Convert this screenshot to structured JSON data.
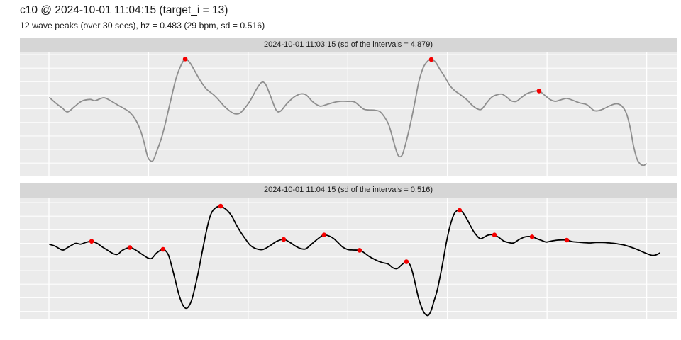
{
  "page": {
    "title": "c10 @ 2024-10-01 11:04:15 (target_i = 13)",
    "subtitle": "12 wave peaks (over 30 secs), hz = 0.483 (29 bpm, sd = 0.516)"
  },
  "colors": {
    "background": "#ffffff",
    "panel_background": "#ebebeb",
    "strip_background": "#d6d6d6",
    "gridline": "#ffffff",
    "peak_marker": "#f40000",
    "text": "#1a1a1a"
  },
  "chart_data": {
    "type": "line",
    "x_unit": "seconds",
    "x_range": [
      0,
      30.7
    ],
    "x_ticks": [
      0,
      5,
      10,
      15,
      20,
      25,
      30
    ],
    "y_axis": "normalized amplitude (no tick labels shown)",
    "grid": true,
    "legend": "none",
    "panels": [
      {
        "strip_label": "2024-10-01 11:03:15 (sd of the intervals = 4.879)",
        "sd_of_intervals": 4.879,
        "peak_count": 3,
        "line_color": "#8e8e8e",
        "points": [
          [
            0.04,
            0.634
          ],
          [
            0.39,
            0.585
          ],
          [
            0.68,
            0.55
          ],
          [
            0.93,
            0.52
          ],
          [
            1.28,
            0.562
          ],
          [
            1.64,
            0.607
          ],
          [
            2.07,
            0.621
          ],
          [
            2.31,
            0.611
          ],
          [
            2.74,
            0.634
          ],
          [
            3.06,
            0.613
          ],
          [
            3.42,
            0.579
          ],
          [
            3.74,
            0.55
          ],
          [
            4.06,
            0.516
          ],
          [
            4.34,
            0.459
          ],
          [
            4.59,
            0.373
          ],
          [
            4.77,
            0.276
          ],
          [
            4.95,
            0.162
          ],
          [
            5.09,
            0.127
          ],
          [
            5.23,
            0.13
          ],
          [
            5.41,
            0.202
          ],
          [
            5.66,
            0.316
          ],
          [
            5.87,
            0.447
          ],
          [
            6.12,
            0.619
          ],
          [
            6.37,
            0.785
          ],
          [
            6.62,
            0.893
          ],
          [
            6.84,
            0.947
          ],
          [
            7.08,
            0.916
          ],
          [
            7.33,
            0.847
          ],
          [
            7.62,
            0.767
          ],
          [
            7.9,
            0.705
          ],
          [
            8.26,
            0.659
          ],
          [
            8.51,
            0.619
          ],
          [
            8.79,
            0.567
          ],
          [
            9.08,
            0.527
          ],
          [
            9.33,
            0.505
          ],
          [
            9.58,
            0.51
          ],
          [
            9.86,
            0.556
          ],
          [
            10.11,
            0.613
          ],
          [
            10.4,
            0.699
          ],
          [
            10.65,
            0.756
          ],
          [
            10.86,
            0.747
          ],
          [
            11.11,
            0.653
          ],
          [
            11.39,
            0.539
          ],
          [
            11.61,
            0.525
          ],
          [
            11.96,
            0.59
          ],
          [
            12.32,
            0.642
          ],
          [
            12.64,
            0.665
          ],
          [
            12.92,
            0.656
          ],
          [
            13.24,
            0.602
          ],
          [
            13.6,
            0.567
          ],
          [
            13.92,
            0.579
          ],
          [
            14.28,
            0.596
          ],
          [
            14.63,
            0.606
          ],
          [
            14.99,
            0.605
          ],
          [
            15.35,
            0.6
          ],
          [
            15.77,
            0.545
          ],
          [
            16.06,
            0.536
          ],
          [
            16.38,
            0.533
          ],
          [
            16.66,
            0.516
          ],
          [
            17.02,
            0.43
          ],
          [
            17.23,
            0.322
          ],
          [
            17.41,
            0.219
          ],
          [
            17.55,
            0.165
          ],
          [
            17.73,
            0.173
          ],
          [
            17.94,
            0.287
          ],
          [
            18.16,
            0.436
          ],
          [
            18.37,
            0.602
          ],
          [
            18.58,
            0.773
          ],
          [
            18.8,
            0.882
          ],
          [
            19.01,
            0.93
          ],
          [
            19.19,
            0.943
          ],
          [
            19.4,
            0.922
          ],
          [
            19.62,
            0.865
          ],
          [
            19.87,
            0.802
          ],
          [
            20.12,
            0.733
          ],
          [
            20.36,
            0.693
          ],
          [
            20.65,
            0.659
          ],
          [
            20.97,
            0.619
          ],
          [
            21.25,
            0.573
          ],
          [
            21.5,
            0.545
          ],
          [
            21.72,
            0.543
          ],
          [
            22.0,
            0.6
          ],
          [
            22.25,
            0.642
          ],
          [
            22.5,
            0.659
          ],
          [
            22.75,
            0.663
          ],
          [
            23.0,
            0.636
          ],
          [
            23.21,
            0.609
          ],
          [
            23.46,
            0.606
          ],
          [
            23.71,
            0.636
          ],
          [
            23.96,
            0.665
          ],
          [
            24.25,
            0.682
          ],
          [
            24.6,
            0.689
          ],
          [
            24.89,
            0.653
          ],
          [
            25.17,
            0.619
          ],
          [
            25.42,
            0.606
          ],
          [
            25.71,
            0.619
          ],
          [
            25.99,
            0.629
          ],
          [
            26.31,
            0.613
          ],
          [
            26.63,
            0.593
          ],
          [
            26.99,
            0.579
          ],
          [
            27.34,
            0.533
          ],
          [
            27.56,
            0.53
          ],
          [
            27.81,
            0.543
          ],
          [
            28.09,
            0.565
          ],
          [
            28.34,
            0.582
          ],
          [
            28.55,
            0.585
          ],
          [
            28.77,
            0.565
          ],
          [
            28.98,
            0.51
          ],
          [
            29.16,
            0.402
          ],
          [
            29.34,
            0.247
          ],
          [
            29.52,
            0.139
          ],
          [
            29.69,
            0.099
          ],
          [
            29.84,
            0.089
          ],
          [
            29.98,
            0.101
          ]
        ],
        "peaks": [
          [
            6.84,
            0.947
          ],
          [
            19.19,
            0.943
          ],
          [
            24.6,
            0.689
          ]
        ]
      },
      {
        "strip_label": "2024-10-01 11:04:15 (sd of the intervals = 0.516)",
        "sd_of_intervals": 0.516,
        "peak_count": 12,
        "line_color": "#000000",
        "points": [
          [
            0.04,
            0.614
          ],
          [
            0.32,
            0.598
          ],
          [
            0.68,
            0.567
          ],
          [
            0.93,
            0.587
          ],
          [
            1.14,
            0.607
          ],
          [
            1.35,
            0.623
          ],
          [
            1.6,
            0.616
          ],
          [
            1.85,
            0.63
          ],
          [
            2.14,
            0.639
          ],
          [
            2.42,
            0.622
          ],
          [
            2.71,
            0.589
          ],
          [
            2.99,
            0.56
          ],
          [
            3.24,
            0.536
          ],
          [
            3.45,
            0.532
          ],
          [
            3.7,
            0.566
          ],
          [
            4.06,
            0.588
          ],
          [
            4.31,
            0.571
          ],
          [
            4.63,
            0.537
          ],
          [
            4.95,
            0.503
          ],
          [
            5.16,
            0.499
          ],
          [
            5.41,
            0.543
          ],
          [
            5.73,
            0.573
          ],
          [
            5.98,
            0.532
          ],
          [
            6.16,
            0.435
          ],
          [
            6.34,
            0.318
          ],
          [
            6.52,
            0.201
          ],
          [
            6.69,
            0.123
          ],
          [
            6.84,
            0.089
          ],
          [
            6.98,
            0.094
          ],
          [
            7.16,
            0.152
          ],
          [
            7.33,
            0.259
          ],
          [
            7.51,
            0.395
          ],
          [
            7.69,
            0.551
          ],
          [
            7.87,
            0.698
          ],
          [
            8.05,
            0.825
          ],
          [
            8.22,
            0.892
          ],
          [
            8.44,
            0.923
          ],
          [
            8.62,
            0.929
          ],
          [
            8.79,
            0.914
          ],
          [
            8.97,
            0.891
          ],
          [
            9.19,
            0.844
          ],
          [
            9.4,
            0.776
          ],
          [
            9.65,
            0.708
          ],
          [
            9.9,
            0.649
          ],
          [
            10.11,
            0.606
          ],
          [
            10.4,
            0.578
          ],
          [
            10.72,
            0.571
          ],
          [
            11.07,
            0.6
          ],
          [
            11.43,
            0.639
          ],
          [
            11.78,
            0.655
          ],
          [
            12.1,
            0.63
          ],
          [
            12.39,
            0.598
          ],
          [
            12.64,
            0.579
          ],
          [
            12.89,
            0.577
          ],
          [
            13.21,
            0.62
          ],
          [
            13.56,
            0.668
          ],
          [
            13.81,
            0.692
          ],
          [
            14.06,
            0.683
          ],
          [
            14.28,
            0.663
          ],
          [
            14.53,
            0.625
          ],
          [
            14.74,
            0.592
          ],
          [
            14.99,
            0.572
          ],
          [
            15.27,
            0.567
          ],
          [
            15.59,
            0.565
          ],
          [
            15.81,
            0.546
          ],
          [
            16.06,
            0.516
          ],
          [
            16.31,
            0.493
          ],
          [
            16.56,
            0.473
          ],
          [
            16.77,
            0.462
          ],
          [
            17.02,
            0.452
          ],
          [
            17.27,
            0.42
          ],
          [
            17.48,
            0.414
          ],
          [
            17.73,
            0.449
          ],
          [
            17.94,
            0.471
          ],
          [
            18.12,
            0.446
          ],
          [
            18.26,
            0.376
          ],
          [
            18.41,
            0.271
          ],
          [
            18.55,
            0.171
          ],
          [
            18.69,
            0.101
          ],
          [
            18.83,
            0.049
          ],
          [
            18.94,
            0.031
          ],
          [
            19.05,
            0.029
          ],
          [
            19.19,
            0.072
          ],
          [
            19.33,
            0.148
          ],
          [
            19.48,
            0.23
          ],
          [
            19.62,
            0.337
          ],
          [
            19.8,
            0.493
          ],
          [
            19.97,
            0.649
          ],
          [
            20.15,
            0.776
          ],
          [
            20.33,
            0.863
          ],
          [
            20.47,
            0.891
          ],
          [
            20.61,
            0.895
          ],
          [
            20.79,
            0.873
          ],
          [
            21.04,
            0.805
          ],
          [
            21.29,
            0.727
          ],
          [
            21.58,
            0.668
          ],
          [
            21.72,
            0.663
          ],
          [
            22.0,
            0.688
          ],
          [
            22.22,
            0.695
          ],
          [
            22.36,
            0.692
          ],
          [
            22.61,
            0.668
          ],
          [
            22.82,
            0.642
          ],
          [
            23.07,
            0.629
          ],
          [
            23.32,
            0.626
          ],
          [
            23.64,
            0.658
          ],
          [
            23.93,
            0.677
          ],
          [
            24.25,
            0.676
          ],
          [
            24.5,
            0.66
          ],
          [
            24.75,
            0.645
          ],
          [
            24.96,
            0.633
          ],
          [
            25.24,
            0.642
          ],
          [
            25.53,
            0.649
          ],
          [
            25.78,
            0.651
          ],
          [
            25.99,
            0.649
          ],
          [
            26.27,
            0.637
          ],
          [
            26.56,
            0.632
          ],
          [
            26.85,
            0.628
          ],
          [
            27.13,
            0.626
          ],
          [
            27.45,
            0.629
          ],
          [
            27.77,
            0.629
          ],
          [
            28.05,
            0.627
          ],
          [
            28.34,
            0.623
          ],
          [
            28.62,
            0.616
          ],
          [
            28.91,
            0.607
          ],
          [
            29.19,
            0.592
          ],
          [
            29.48,
            0.575
          ],
          [
            29.73,
            0.557
          ],
          [
            29.94,
            0.542
          ],
          [
            30.16,
            0.528
          ],
          [
            30.33,
            0.522
          ],
          [
            30.51,
            0.529
          ],
          [
            30.65,
            0.542
          ]
        ],
        "peaks": [
          [
            2.14,
            0.639
          ],
          [
            4.06,
            0.588
          ],
          [
            5.73,
            0.573
          ],
          [
            8.62,
            0.929
          ],
          [
            11.78,
            0.655
          ],
          [
            13.81,
            0.692
          ],
          [
            15.59,
            0.565
          ],
          [
            17.94,
            0.471
          ],
          [
            20.61,
            0.895
          ],
          [
            22.36,
            0.692
          ],
          [
            24.25,
            0.676
          ],
          [
            25.99,
            0.649
          ]
        ]
      }
    ]
  }
}
